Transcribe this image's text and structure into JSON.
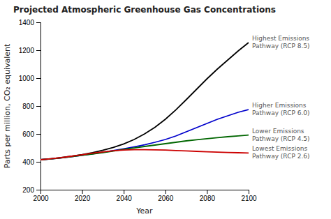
{
  "chart_data": {
    "type": "line",
    "title": "Projected Atmospheric Greenhouse Gas Concentrations",
    "x_label": "Year",
    "y_label": "Parts per million, CO₂ equivalent",
    "xlim": [
      2000,
      2100
    ],
    "ylim": [
      200,
      1400
    ],
    "xticks": [
      2000,
      2020,
      2040,
      2060,
      2080,
      2100
    ],
    "yticks": [
      200,
      400,
      600,
      800,
      1000,
      1200,
      1400
    ],
    "grid": false,
    "x": [
      2000,
      2005,
      2010,
      2015,
      2020,
      2025,
      2030,
      2035,
      2040,
      2045,
      2050,
      2055,
      2060,
      2065,
      2070,
      2075,
      2080,
      2085,
      2090,
      2095,
      2100
    ],
    "series": [
      {
        "color": "#000000",
        "values": [
          415,
          422,
          430,
          440,
          452,
          466,
          483,
          503,
          528,
          560,
          600,
          648,
          705,
          772,
          845,
          920,
          995,
          1065,
          1130,
          1195,
          1255
        ]
      },
      {
        "color": "#0000cc",
        "values": [
          415,
          421,
          428,
          437,
          447,
          457,
          468,
          480,
          493,
          507,
          522,
          540,
          560,
          585,
          615,
          645,
          675,
          705,
          730,
          755,
          775
        ]
      },
      {
        "color": "#006600",
        "values": [
          415,
          421,
          428,
          437,
          447,
          456,
          466,
          477,
          489,
          499,
          510,
          520,
          530,
          540,
          550,
          558,
          566,
          573,
          580,
          586,
          592
        ]
      },
      {
        "color": "#cc0000",
        "values": [
          415,
          422,
          430,
          440,
          451,
          462,
          471,
          479,
          484,
          487,
          487,
          486,
          484,
          481,
          478,
          475,
          472,
          469,
          467,
          465,
          463
        ]
      }
    ],
    "annotations": [
      {
        "text": "Highest Emissions\nPathway (RCP 8.5)",
        "y": 1255,
        "color": "#555555"
      },
      {
        "text": "Higher Emissions\nPathway (RCP 6.0)",
        "y": 775,
        "color": "#555555"
      },
      {
        "text": "Lower Emissions\nPathway (RCP 4.5)",
        "y": 592,
        "color": "#555555"
      },
      {
        "text": "Lowest Emissions\nPathway (RCP 2.6)",
        "y": 463,
        "color": "#555555"
      }
    ]
  }
}
